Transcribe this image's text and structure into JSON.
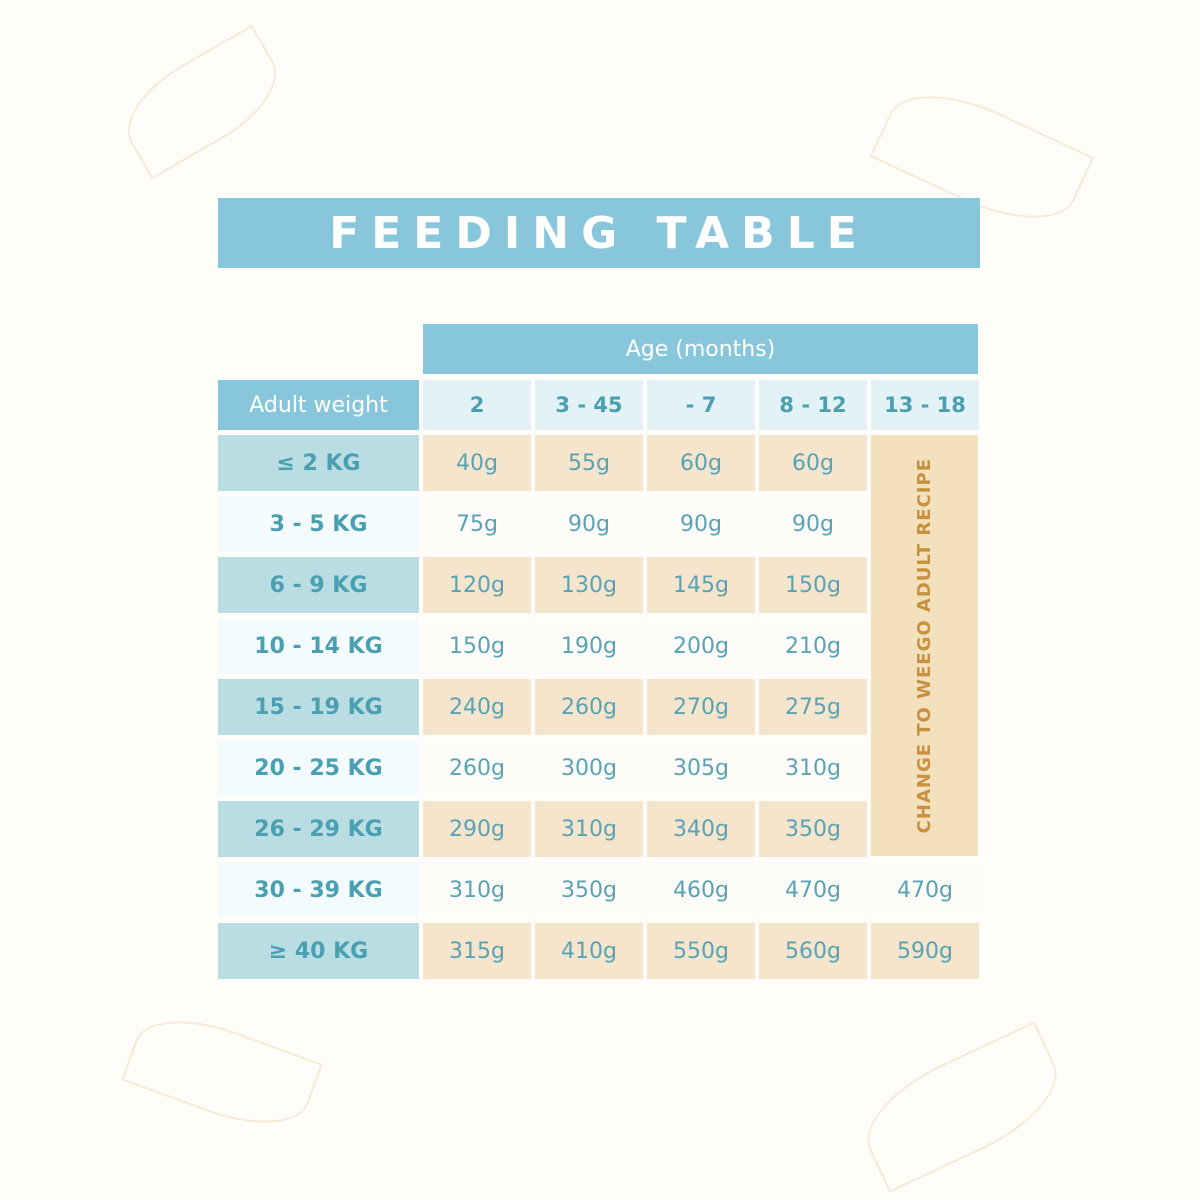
{
  "header": {
    "title": "FEEDING TABLE"
  },
  "table": {
    "group_header": "Age (months)",
    "row_header": "Adult weight",
    "columns": [
      "2",
      "3 - 45",
      "- 7",
      "8 - 12",
      "13 - 18"
    ],
    "note": "CHANGE TO WEEGO ADULT RECIPE",
    "rows": [
      {
        "weight": "≤ 2 KG",
        "amounts": [
          "40g",
          "55g",
          "60g",
          "60g"
        ]
      },
      {
        "weight": "3 - 5 KG",
        "amounts": [
          "75g",
          "90g",
          "90g",
          "90g"
        ]
      },
      {
        "weight": "6 - 9 KG",
        "amounts": [
          "120g",
          "130g",
          "145g",
          "150g"
        ]
      },
      {
        "weight": "10 - 14 KG",
        "amounts": [
          "150g",
          "190g",
          "200g",
          "210g"
        ]
      },
      {
        "weight": "15 - 19 KG",
        "amounts": [
          "240g",
          "260g",
          "270g",
          "275g"
        ]
      },
      {
        "weight": "20 - 25 KG",
        "amounts": [
          "260g",
          "300g",
          "305g",
          "310g"
        ]
      },
      {
        "weight": "26 - 29 KG",
        "amounts": [
          "290g",
          "310g",
          "340g",
          "350g"
        ]
      },
      {
        "weight": "30 - 39 KG",
        "amounts": [
          "310g",
          "350g",
          "460g",
          "470g",
          "470g"
        ]
      },
      {
        "weight": "≥ 40 KG",
        "amounts": [
          "315g",
          "410g",
          "550g",
          "560g",
          "590g"
        ]
      }
    ]
  }
}
